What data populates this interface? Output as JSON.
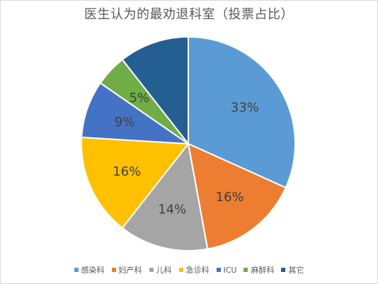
{
  "chart_data": {
    "type": "pie",
    "title": "医生认为的最劝退科室（投票占比）",
    "categories": [
      "感染科",
      "妇产科",
      "儿科",
      "急诊科",
      "ICU",
      "麻醉科",
      "其它"
    ],
    "values": [
      33,
      16,
      14,
      16,
      9,
      5,
      11
    ],
    "data_labels": [
      "33%",
      "16%",
      "14%",
      "16%",
      "9%",
      "5%",
      ""
    ],
    "colors": [
      "#5b9bd5",
      "#ed7d31",
      "#a5a5a5",
      "#ffc000",
      "#4472c4",
      "#70ad47",
      "#255e91"
    ],
    "legend_position": "bottom"
  }
}
